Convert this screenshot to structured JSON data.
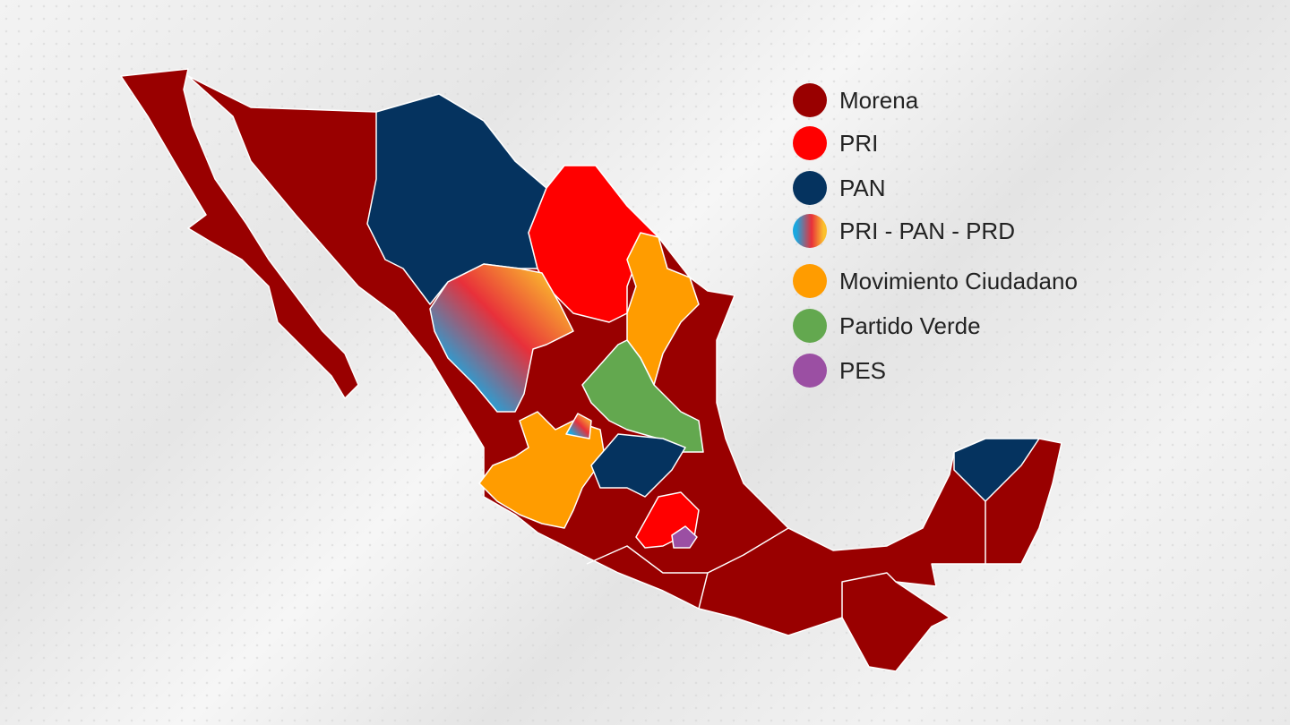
{
  "legend": [
    {
      "label": "Morena",
      "color": "#990000"
    },
    {
      "label": "PRI",
      "color": "#ff0000"
    },
    {
      "label": "PAN",
      "color": "#05335f"
    },
    {
      "label": "PRI - PAN - PRD",
      "color": "gradient: #1aa8e0, #e8303a, #fbc02d"
    },
    {
      "label": "Movimiento Ciudadano",
      "color": "#ff9c00"
    },
    {
      "label": "Partido Verde",
      "color": "#63a84f"
    },
    {
      "label": "PES",
      "color": "#9b4fa3"
    }
  ],
  "map": {
    "country": "Mexico",
    "states": {
      "Chihuahua": "PAN",
      "Coahuila": "PRI",
      "Nuevo León": "Movimiento Ciudadano",
      "Durango": "PRI - PAN - PRD",
      "San Luis Potosí": "Partido Verde",
      "Jalisco": "Movimiento Ciudadano",
      "Aguascalientes": "PRI - PAN - PRD",
      "Guanajuato": "PAN",
      "Querétaro": "PAN",
      "Estado de México": "PRI",
      "Morelos": "PES",
      "Yucatán": "PAN",
      "others": "Morena"
    }
  }
}
